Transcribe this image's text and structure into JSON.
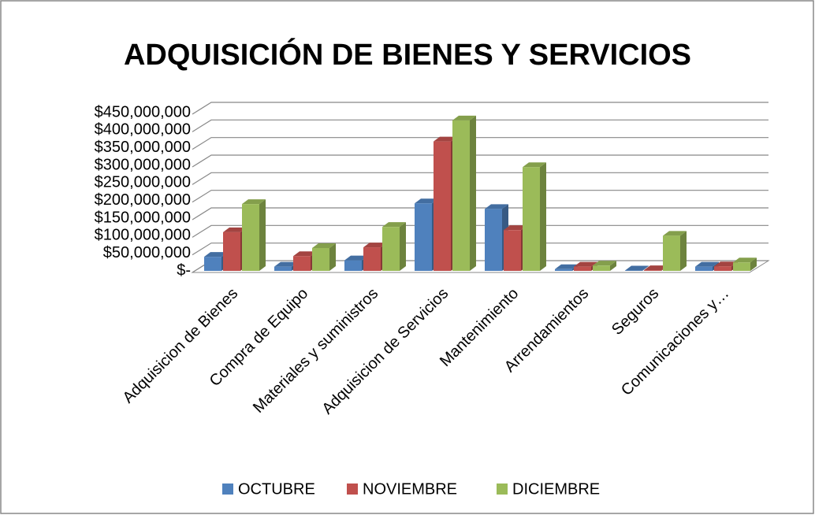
{
  "chart_data": {
    "type": "bar3d",
    "title": "ADQUISICIÓN DE BIENES Y SERVICIOS",
    "categories": [
      "Adquisicion de Bienes",
      "Compra de Equipo",
      "Materiales y suministros",
      "Adquisicion de Servicios",
      "Mantenimiento",
      "Arrendamientos",
      "Seguros",
      "Comunicaciones y…"
    ],
    "series": [
      {
        "name": "OCTUBRE",
        "color": "#4f81bd",
        "values": [
          40000000,
          12000000,
          30000000,
          192000000,
          176000000,
          5000000,
          1000000,
          12000000
        ]
      },
      {
        "name": "NOVIEMBRE",
        "color": "#c0504d",
        "values": [
          110000000,
          42000000,
          67000000,
          368000000,
          116000000,
          12000000,
          2000000,
          13000000
        ]
      },
      {
        "name": "DICIEMBRE",
        "color": "#9bbb59",
        "values": [
          190000000,
          65000000,
          125000000,
          428000000,
          295000000,
          15000000,
          100000000,
          24000000
        ]
      }
    ],
    "ylim": [
      0,
      450000000
    ],
    "yticks": [
      {
        "value": 0,
        "label": "$-"
      },
      {
        "value": 50000000,
        "label": "$50,000,000"
      },
      {
        "value": 100000000,
        "label": "$100,000,000"
      },
      {
        "value": 150000000,
        "label": "$150,000,000"
      },
      {
        "value": 200000000,
        "label": "$200,000,000"
      },
      {
        "value": 250000000,
        "label": "$250,000,000"
      },
      {
        "value": 300000000,
        "label": "$300,000,000"
      },
      {
        "value": 350000000,
        "label": "$350,000,000"
      },
      {
        "value": 400000000,
        "label": "$400,000,000"
      },
      {
        "value": 450000000,
        "label": "$450,000,000"
      }
    ],
    "grid": true,
    "legend": "bottom"
  }
}
